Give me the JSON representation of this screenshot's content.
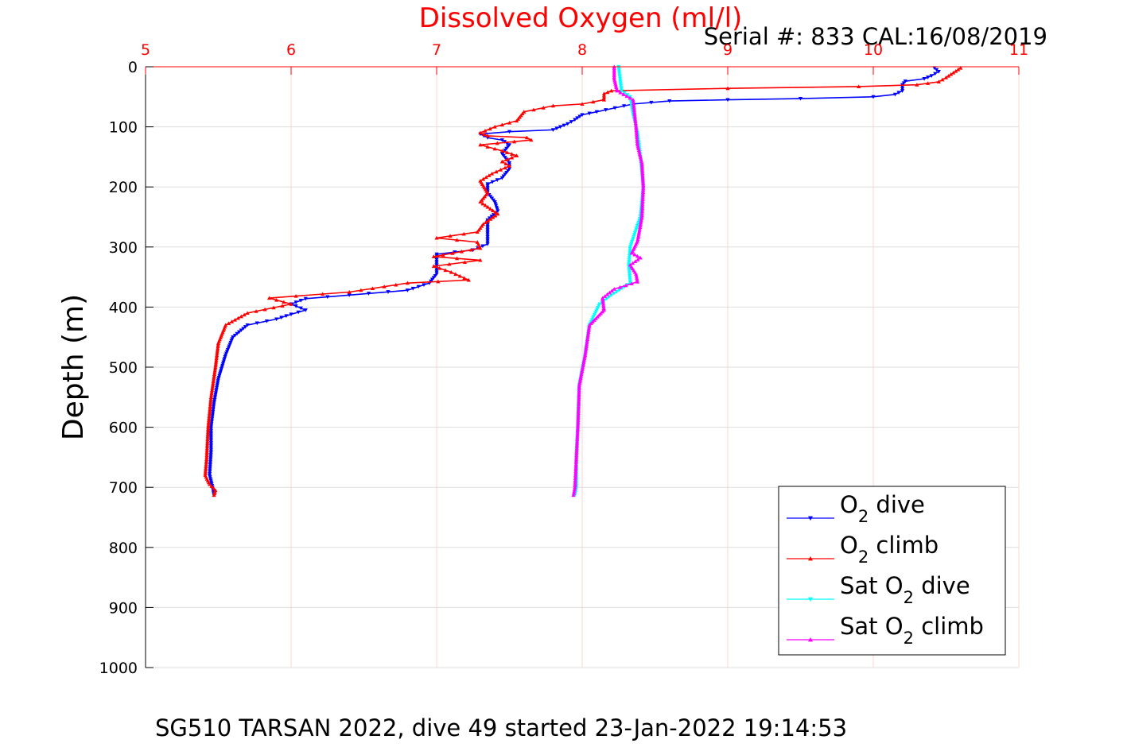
{
  "page": {
    "caption": "SG510 TARSAN 2022, dive 49 started 23-Jan-2022 19:14:53"
  },
  "colors": {
    "title": "#ff0000",
    "o2_dive": "#0000ff",
    "o2_climb": "#ff0000",
    "sat_o2_dive": "#00ffff",
    "sat_o2_climb": "#ff00ff",
    "grid": "#dddddd"
  },
  "chart_data": {
    "type": "line",
    "title": "Dissolved Oxygen (ml/l)",
    "subtitle": "Serial #: 833  CAL:16/08/2019",
    "xlabel": "",
    "ylabel": "Depth (m)",
    "xlim": [
      5,
      11
    ],
    "ylim": [
      0,
      1000
    ],
    "y_reversed": true,
    "x_axis_position": "top",
    "x_ticks": [
      5,
      6,
      7,
      8,
      9,
      10,
      11
    ],
    "y_ticks": [
      0,
      100,
      200,
      300,
      400,
      500,
      600,
      700,
      800,
      900,
      1000
    ],
    "grid": true,
    "legend_position": "bottom-right",
    "legend": [
      {
        "prefix": "O",
        "sub": "2",
        "suffix": " dive"
      },
      {
        "prefix": "O",
        "sub": "2",
        "suffix": " climb"
      },
      {
        "prefix": "Sat O",
        "sub": "2",
        "suffix": " dive"
      },
      {
        "prefix": "Sat O",
        "sub": "2",
        "suffix": " climb"
      }
    ],
    "series": [
      {
        "marker": "triangle-down",
        "color": "#0000ff",
        "points": [
          [
            10.42,
            2
          ],
          [
            10.45,
            8
          ],
          [
            10.4,
            15
          ],
          [
            10.35,
            20
          ],
          [
            10.22,
            24
          ],
          [
            10.2,
            30
          ],
          [
            10.2,
            40
          ],
          [
            10.15,
            46
          ],
          [
            10.0,
            50
          ],
          [
            9.5,
            53
          ],
          [
            9.0,
            55
          ],
          [
            8.6,
            57
          ],
          [
            8.35,
            62
          ],
          [
            8.1,
            75
          ],
          [
            8.0,
            80
          ],
          [
            7.95,
            88
          ],
          [
            7.9,
            95
          ],
          [
            7.85,
            100
          ],
          [
            7.8,
            105
          ],
          [
            7.5,
            108
          ],
          [
            7.3,
            112
          ],
          [
            7.35,
            118
          ],
          [
            7.45,
            122
          ],
          [
            7.5,
            130
          ],
          [
            7.45,
            145
          ],
          [
            7.5,
            160
          ],
          [
            7.5,
            170
          ],
          [
            7.45,
            185
          ],
          [
            7.35,
            195
          ],
          [
            7.35,
            210
          ],
          [
            7.4,
            225
          ],
          [
            7.42,
            240
          ],
          [
            7.35,
            255
          ],
          [
            7.35,
            280
          ],
          [
            7.35,
            295
          ],
          [
            7.25,
            305
          ],
          [
            7.0,
            312
          ],
          [
            7.0,
            330
          ],
          [
            7.0,
            345
          ],
          [
            6.95,
            360
          ],
          [
            6.8,
            372
          ],
          [
            6.4,
            380
          ],
          [
            6.1,
            386
          ],
          [
            6.0,
            395
          ],
          [
            6.1,
            405
          ],
          [
            6.0,
            412
          ],
          [
            5.9,
            420
          ],
          [
            5.7,
            430
          ],
          [
            5.6,
            450
          ],
          [
            5.55,
            480
          ],
          [
            5.5,
            520
          ],
          [
            5.47,
            560
          ],
          [
            5.45,
            600
          ],
          [
            5.45,
            640
          ],
          [
            5.44,
            680
          ],
          [
            5.46,
            700
          ],
          [
            5.47,
            713
          ]
        ]
      },
      {
        "marker": "triangle-up",
        "color": "#ff0000",
        "points": [
          [
            10.6,
            2
          ],
          [
            10.55,
            10
          ],
          [
            10.5,
            18
          ],
          [
            10.45,
            25
          ],
          [
            10.3,
            30
          ],
          [
            9.9,
            33
          ],
          [
            9.0,
            36
          ],
          [
            8.2,
            40
          ],
          [
            8.15,
            45
          ],
          [
            8.15,
            55
          ],
          [
            8.0,
            62
          ],
          [
            7.8,
            65
          ],
          [
            7.6,
            75
          ],
          [
            7.55,
            90
          ],
          [
            7.4,
            100
          ],
          [
            7.3,
            110
          ],
          [
            7.35,
            115
          ],
          [
            7.62,
            118
          ],
          [
            7.65,
            122
          ],
          [
            7.3,
            130
          ],
          [
            7.45,
            140
          ],
          [
            7.55,
            148
          ],
          [
            7.45,
            158
          ],
          [
            7.5,
            165
          ],
          [
            7.38,
            178
          ],
          [
            7.3,
            190
          ],
          [
            7.35,
            210
          ],
          [
            7.3,
            225
          ],
          [
            7.42,
            245
          ],
          [
            7.32,
            262
          ],
          [
            7.28,
            275
          ],
          [
            7.0,
            285
          ],
          [
            7.28,
            292
          ],
          [
            7.3,
            302
          ],
          [
            6.98,
            316
          ],
          [
            7.3,
            322
          ],
          [
            6.98,
            332
          ],
          [
            7.1,
            342
          ],
          [
            7.22,
            355
          ],
          [
            6.8,
            360
          ],
          [
            6.4,
            375
          ],
          [
            5.85,
            385
          ],
          [
            6.0,
            395
          ],
          [
            5.7,
            410
          ],
          [
            5.55,
            430
          ],
          [
            5.5,
            460
          ],
          [
            5.48,
            500
          ],
          [
            5.45,
            550
          ],
          [
            5.43,
            600
          ],
          [
            5.42,
            650
          ],
          [
            5.41,
            680
          ],
          [
            5.44,
            695
          ],
          [
            5.48,
            705
          ],
          [
            5.47,
            713
          ]
        ]
      },
      {
        "marker": "triangle-down",
        "color": "#00ffff",
        "points": [
          [
            8.25,
            0
          ],
          [
            8.26,
            20
          ],
          [
            8.27,
            40
          ],
          [
            8.33,
            50
          ],
          [
            8.35,
            80
          ],
          [
            8.38,
            110
          ],
          [
            8.4,
            150
          ],
          [
            8.42,
            200
          ],
          [
            8.4,
            250
          ],
          [
            8.33,
            300
          ],
          [
            8.32,
            330
          ],
          [
            8.33,
            360
          ],
          [
            8.2,
            380
          ],
          [
            8.12,
            395
          ],
          [
            8.05,
            430
          ],
          [
            8.02,
            480
          ],
          [
            7.98,
            530
          ],
          [
            7.97,
            600
          ],
          [
            7.96,
            650
          ],
          [
            7.96,
            700
          ],
          [
            7.95,
            713
          ]
        ]
      },
      {
        "marker": "triangle-up",
        "color": "#ff00ff",
        "points": [
          [
            8.22,
            0
          ],
          [
            8.22,
            20
          ],
          [
            8.24,
            40
          ],
          [
            8.35,
            55
          ],
          [
            8.37,
            100
          ],
          [
            8.38,
            130
          ],
          [
            8.41,
            160
          ],
          [
            8.42,
            200
          ],
          [
            8.41,
            250
          ],
          [
            8.38,
            290
          ],
          [
            8.34,
            310
          ],
          [
            8.4,
            318
          ],
          [
            8.33,
            330
          ],
          [
            8.37,
            345
          ],
          [
            8.38,
            358
          ],
          [
            8.22,
            370
          ],
          [
            8.14,
            385
          ],
          [
            8.15,
            405
          ],
          [
            8.05,
            430
          ],
          [
            8.02,
            480
          ],
          [
            7.98,
            530
          ],
          [
            7.97,
            600
          ],
          [
            7.96,
            650
          ],
          [
            7.95,
            700
          ],
          [
            7.94,
            713
          ]
        ]
      }
    ]
  }
}
